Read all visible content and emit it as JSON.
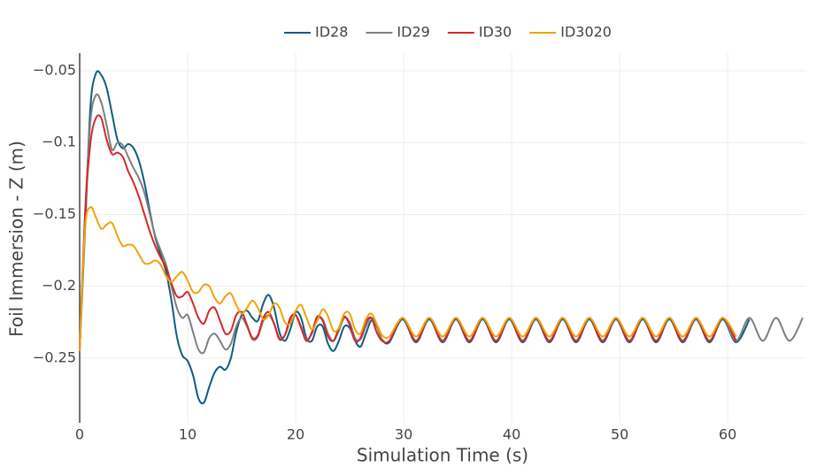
{
  "chart_data": {
    "type": "line",
    "x_label": "Simulation Time (s)",
    "y_label": "Foil Immersion - Z (m)",
    "xlim": [
      0,
      67.2
    ],
    "ylim": [
      -0.295,
      -0.0377
    ],
    "xticks": [
      0,
      10,
      20,
      30,
      40,
      50,
      60
    ],
    "yticks": [
      {
        "value": -0.05,
        "label": "−0.05"
      },
      {
        "value": -0.1,
        "label": "−0.1"
      },
      {
        "value": -0.15,
        "label": "−0.15"
      },
      {
        "value": -0.2,
        "label": "−0.2"
      },
      {
        "value": -0.25,
        "label": "−0.25"
      }
    ],
    "grid": true,
    "legend": "top",
    "x": [
      0,
      0.5,
      1,
      1.5,
      2,
      2.5,
      3,
      3.5,
      4,
      4.5,
      5,
      5.5,
      6,
      6.5,
      7,
      7.5,
      8,
      8.5,
      9,
      9.5,
      10,
      10.5,
      11,
      11.5,
      12,
      12.5,
      13,
      13.5,
      14,
      14.5,
      15,
      15.5,
      16,
      16.5,
      17,
      17.5,
      18,
      18.5,
      19,
      19.5,
      20,
      20.5,
      21,
      21.5,
      22,
      22.5,
      23,
      23.5,
      24,
      24.5,
      25,
      25.5,
      26,
      26.5,
      27,
      27.5,
      28,
      28.67,
      29.9,
      31.14,
      32.37,
      33.61,
      34.84,
      36.08,
      37.31,
      38.55,
      39.78,
      41.02,
      42.25,
      43.49,
      44.72,
      45.96,
      47.19,
      48.43,
      49.66,
      50.9,
      52.13,
      53.37,
      54.6,
      55.84,
      57.07,
      58.31,
      59.54,
      60.78,
      62.01,
      63.25,
      64.48,
      65.72,
      66.95
    ],
    "series": [
      {
        "name": "ID28",
        "color": "#0f5c80",
        "values": [
          -0.245,
          -0.16,
          -0.075,
          -0.052,
          -0.053,
          -0.062,
          -0.08,
          -0.098,
          -0.104,
          -0.101,
          -0.104,
          -0.113,
          -0.128,
          -0.148,
          -0.166,
          -0.178,
          -0.19,
          -0.21,
          -0.235,
          -0.248,
          -0.252,
          -0.262,
          -0.278,
          -0.281,
          -0.27,
          -0.26,
          -0.256,
          -0.258,
          -0.25,
          -0.232,
          -0.22,
          -0.217,
          -0.222,
          -0.224,
          -0.212,
          -0.206,
          -0.215,
          -0.232,
          -0.238,
          -0.23,
          -0.218,
          -0.222,
          -0.236,
          -0.238,
          -0.228,
          -0.228,
          -0.24,
          -0.245,
          -0.238,
          -0.228,
          -0.229,
          -0.238,
          -0.242,
          -0.233,
          -0.224,
          -0.228,
          -0.237,
          -0.239,
          -0.223,
          -0.239,
          -0.223,
          -0.239,
          -0.223,
          -0.239,
          -0.223,
          -0.239,
          -0.223,
          -0.239,
          -0.223,
          -0.239,
          -0.223,
          -0.239,
          -0.223,
          -0.239,
          -0.223,
          -0.239,
          -0.223,
          -0.239,
          -0.223,
          -0.239,
          -0.223,
          -0.239,
          -0.223,
          -0.239,
          -0.223,
          null,
          null,
          null,
          null
        ]
      },
      {
        "name": "ID29",
        "color": "#7f7f7f",
        "values": [
          -0.245,
          -0.15,
          -0.085,
          -0.067,
          -0.072,
          -0.088,
          -0.105,
          -0.1,
          -0.102,
          -0.11,
          -0.118,
          -0.125,
          -0.135,
          -0.15,
          -0.165,
          -0.175,
          -0.185,
          -0.2,
          -0.215,
          -0.222,
          -0.22,
          -0.232,
          -0.244,
          -0.246,
          -0.236,
          -0.233,
          -0.238,
          -0.244,
          -0.24,
          -0.228,
          -0.222,
          -0.228,
          -0.237,
          -0.235,
          -0.224,
          -0.22,
          -0.226,
          -0.236,
          -0.234,
          -0.224,
          -0.22,
          -0.228,
          -0.237,
          -0.233,
          -0.223,
          -0.223,
          -0.233,
          -0.238,
          -0.231,
          -0.222,
          -0.225,
          -0.236,
          -0.237,
          -0.228,
          -0.222,
          -0.228,
          -0.237,
          -0.238,
          -0.222,
          -0.238,
          -0.222,
          -0.238,
          -0.222,
          -0.238,
          -0.222,
          -0.238,
          -0.222,
          -0.238,
          -0.222,
          -0.238,
          -0.222,
          -0.238,
          -0.222,
          -0.238,
          -0.222,
          -0.238,
          -0.222,
          -0.238,
          -0.222,
          -0.238,
          -0.222,
          -0.238,
          -0.222,
          -0.238,
          -0.222,
          -0.238,
          -0.222,
          -0.238,
          -0.222
        ]
      },
      {
        "name": "ID30",
        "color": "#d62728",
        "values": [
          -0.245,
          -0.15,
          -0.1,
          -0.083,
          -0.083,
          -0.098,
          -0.108,
          -0.107,
          -0.11,
          -0.12,
          -0.128,
          -0.138,
          -0.15,
          -0.162,
          -0.172,
          -0.18,
          -0.187,
          -0.198,
          -0.207,
          -0.207,
          -0.204,
          -0.212,
          -0.222,
          -0.226,
          -0.217,
          -0.215,
          -0.224,
          -0.233,
          -0.231,
          -0.22,
          -0.218,
          -0.227,
          -0.236,
          -0.234,
          -0.222,
          -0.218,
          -0.226,
          -0.237,
          -0.234,
          -0.222,
          -0.22,
          -0.229,
          -0.238,
          -0.232,
          -0.221,
          -0.224,
          -0.235,
          -0.238,
          -0.229,
          -0.221,
          -0.227,
          -0.238,
          -0.236,
          -0.225,
          -0.222,
          -0.232,
          -0.238,
          -0.238,
          -0.222,
          -0.238,
          -0.222,
          -0.238,
          -0.222,
          -0.238,
          -0.222,
          -0.238,
          -0.222,
          -0.238,
          -0.222,
          -0.238,
          -0.222,
          -0.238,
          -0.222,
          -0.238,
          -0.222,
          -0.238,
          -0.222,
          -0.238,
          -0.222,
          -0.238,
          -0.222,
          -0.238,
          -0.222,
          -0.238,
          null,
          null,
          null,
          null,
          null
        ]
      },
      {
        "name": "ID3020",
        "color": "#f0a30a",
        "values": [
          -0.245,
          -0.16,
          -0.145,
          -0.152,
          -0.16,
          -0.157,
          -0.156,
          -0.165,
          -0.172,
          -0.171,
          -0.172,
          -0.178,
          -0.184,
          -0.184,
          -0.182,
          -0.185,
          -0.193,
          -0.197,
          -0.193,
          -0.19,
          -0.196,
          -0.204,
          -0.204,
          -0.199,
          -0.2,
          -0.208,
          -0.212,
          -0.207,
          -0.205,
          -0.213,
          -0.219,
          -0.215,
          -0.21,
          -0.215,
          -0.223,
          -0.22,
          -0.212,
          -0.215,
          -0.225,
          -0.226,
          -0.217,
          -0.213,
          -0.222,
          -0.23,
          -0.224,
          -0.216,
          -0.221,
          -0.231,
          -0.229,
          -0.219,
          -0.219,
          -0.23,
          -0.233,
          -0.223,
          -0.219,
          -0.226,
          -0.234,
          -0.235,
          -0.222,
          -0.235,
          -0.222,
          -0.235,
          -0.222,
          -0.235,
          -0.222,
          -0.235,
          -0.222,
          -0.235,
          -0.222,
          -0.235,
          -0.222,
          -0.235,
          -0.222,
          -0.235,
          -0.222,
          -0.235,
          -0.222,
          -0.235,
          -0.222,
          -0.235,
          -0.222,
          -0.235,
          -0.222,
          -0.235,
          null,
          null,
          null,
          null,
          null
        ]
      }
    ]
  }
}
